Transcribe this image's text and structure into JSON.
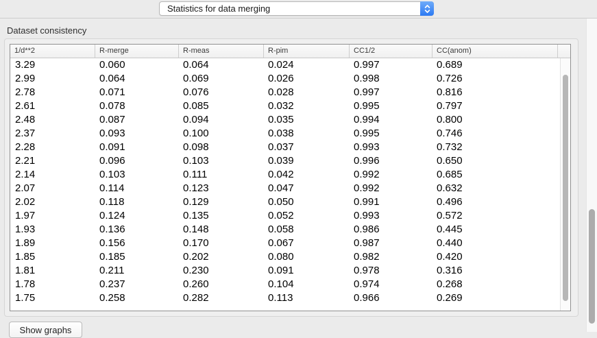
{
  "toolbar": {
    "view_selector": "Statistics for data merging"
  },
  "section": {
    "title": "Dataset consistency"
  },
  "table": {
    "columns": [
      "1/d**2",
      "R-merge",
      "R-meas",
      "R-pim",
      "CC1/2",
      "CC(anom)"
    ],
    "rows": [
      [
        "3.29",
        "0.060",
        "0.064",
        "0.024",
        "0.997",
        "0.689"
      ],
      [
        "2.99",
        "0.064",
        "0.069",
        "0.026",
        "0.998",
        "0.726"
      ],
      [
        "2.78",
        "0.071",
        "0.076",
        "0.028",
        "0.997",
        "0.816"
      ],
      [
        "2.61",
        "0.078",
        "0.085",
        "0.032",
        "0.995",
        "0.797"
      ],
      [
        "2.48",
        "0.087",
        "0.094",
        "0.035",
        "0.994",
        "0.800"
      ],
      [
        "2.37",
        "0.093",
        "0.100",
        "0.038",
        "0.995",
        "0.746"
      ],
      [
        "2.28",
        "0.091",
        "0.098",
        "0.037",
        "0.993",
        "0.732"
      ],
      [
        "2.21",
        "0.096",
        "0.103",
        "0.039",
        "0.996",
        "0.650"
      ],
      [
        "2.14",
        "0.103",
        "0.111",
        "0.042",
        "0.992",
        "0.685"
      ],
      [
        "2.07",
        "0.114",
        "0.123",
        "0.047",
        "0.992",
        "0.632"
      ],
      [
        "2.02",
        "0.118",
        "0.129",
        "0.050",
        "0.991",
        "0.496"
      ],
      [
        "1.97",
        "0.124",
        "0.135",
        "0.052",
        "0.993",
        "0.572"
      ],
      [
        "1.93",
        "0.136",
        "0.148",
        "0.058",
        "0.986",
        "0.445"
      ],
      [
        "1.89",
        "0.156",
        "0.170",
        "0.067",
        "0.987",
        "0.440"
      ],
      [
        "1.85",
        "0.185",
        "0.202",
        "0.080",
        "0.982",
        "0.420"
      ],
      [
        "1.81",
        "0.211",
        "0.230",
        "0.091",
        "0.978",
        "0.316"
      ],
      [
        "1.78",
        "0.237",
        "0.260",
        "0.104",
        "0.974",
        "0.268"
      ],
      [
        "1.75",
        "0.258",
        "0.282",
        "0.113",
        "0.966",
        "0.269"
      ]
    ]
  },
  "footer": {
    "show_graphs_label": "Show graphs"
  },
  "icons": {
    "popup_stepper": "updown-chevrons-icon"
  },
  "colors": {
    "accent_blue": "#2c7af3",
    "window_background": "#ebebeb",
    "table_border": "#909090"
  }
}
